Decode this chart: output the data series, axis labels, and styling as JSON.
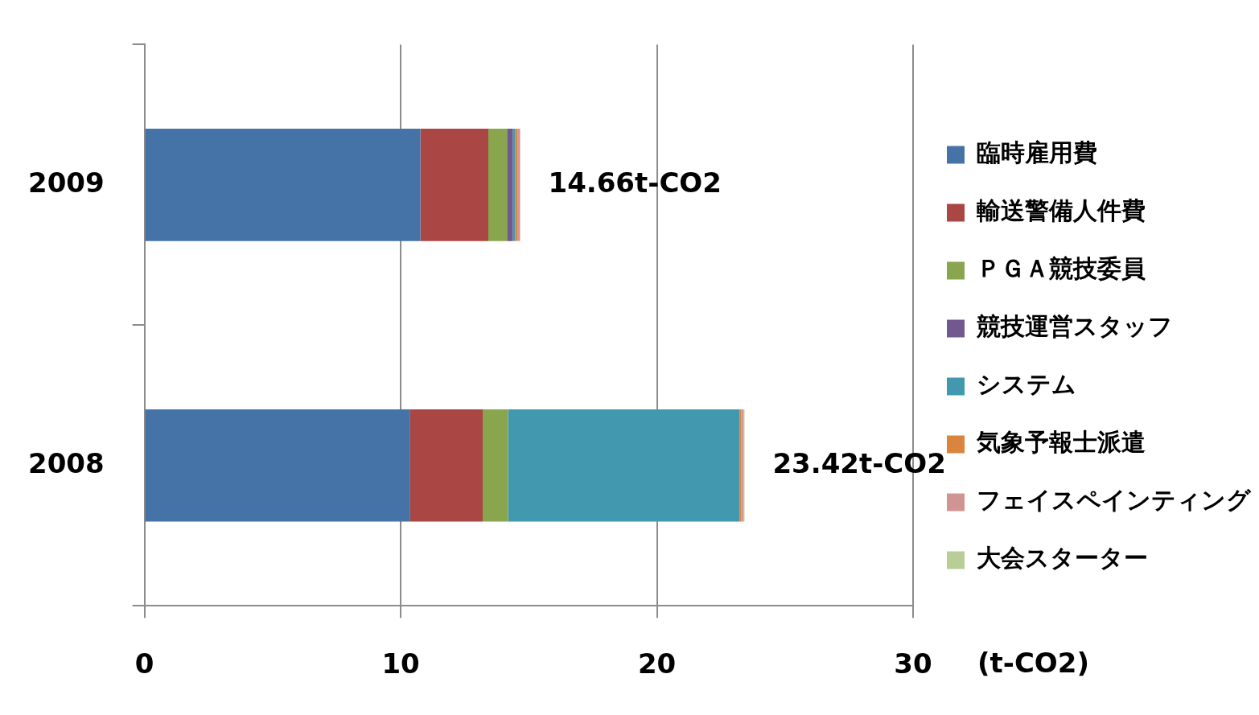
{
  "chart_data": {
    "type": "bar",
    "orientation": "horizontal",
    "stacked": true,
    "categories": [
      "2009",
      "2008"
    ],
    "series": [
      {
        "name": "臨時雇用費",
        "color": "#4673a7",
        "values": [
          10.77,
          10.37
        ]
      },
      {
        "name": "輸送警備人件費",
        "color": "#aa4643",
        "values": [
          2.65,
          2.83
        ]
      },
      {
        "name": "ＰＧＡ競技委員",
        "color": "#89a54e",
        "values": [
          0.73,
          0.99
        ]
      },
      {
        "name": "競技運営スタッフ",
        "color": "#71588f",
        "values": [
          0.22,
          null
        ]
      },
      {
        "name": "システム",
        "color": "#4198af",
        "values": [
          0.1,
          9.04
        ]
      },
      {
        "name": "気象予報士派遣",
        "color": "#db843d",
        "values": [
          0.09,
          0.06
        ]
      },
      {
        "name": "フェイスペインティング",
        "color": "#d09493",
        "values": [
          0.1,
          0.08
        ]
      },
      {
        "name": "大会スターター",
        "color": "#b9cd96",
        "values": [
          null,
          0.05
        ]
      }
    ],
    "totals": [
      "14.66t-CO2",
      "23.42t-CO2"
    ],
    "xlim": [
      0,
      30
    ],
    "xticks": [
      0,
      10,
      20,
      30
    ],
    "xlabel": "(t-CO2)",
    "grid": "x",
    "legend": "right"
  }
}
